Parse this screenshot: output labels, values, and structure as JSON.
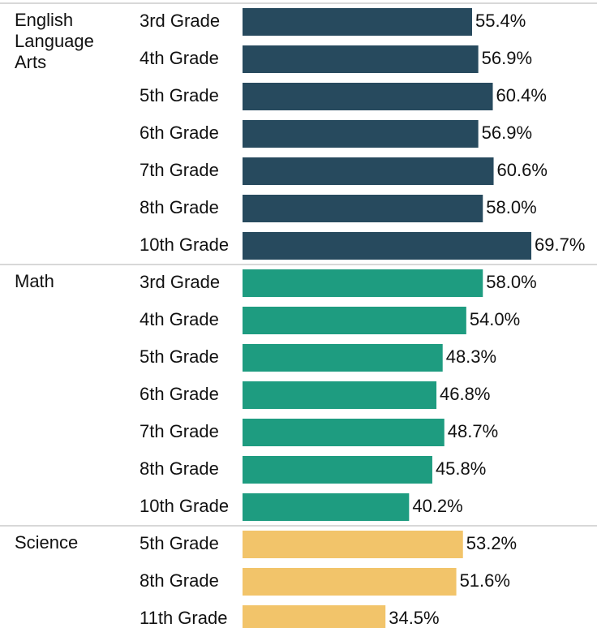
{
  "chart_data": {
    "type": "bar",
    "groups": [
      {
        "name": "English Language Arts",
        "color": "#274a5e",
        "categories": [
          "3rd Grade",
          "4th Grade",
          "5th Grade",
          "6th Grade",
          "7th Grade",
          "8th Grade",
          "10th Grade"
        ],
        "values": [
          55.4,
          56.9,
          60.4,
          56.9,
          60.6,
          58.0,
          69.7
        ],
        "value_labels": [
          "55.4%",
          "56.9%",
          "60.4%",
          "56.9%",
          "60.6%",
          "58.0%",
          "69.7%"
        ]
      },
      {
        "name": "Math",
        "color": "#1e9c80",
        "categories": [
          "3rd Grade",
          "4th Grade",
          "5th Grade",
          "6th Grade",
          "7th Grade",
          "8th Grade",
          "10th Grade"
        ],
        "values": [
          58.0,
          54.0,
          48.3,
          46.8,
          48.7,
          45.8,
          40.2
        ],
        "value_labels": [
          "58.0%",
          "54.0%",
          "48.3%",
          "46.8%",
          "48.7%",
          "45.8%",
          "40.2%"
        ]
      },
      {
        "name": "Science",
        "color": "#f2c46a",
        "categories": [
          "5th Grade",
          "8th Grade",
          "11th Grade"
        ],
        "values": [
          53.2,
          51.6,
          34.5
        ],
        "value_labels": [
          "53.2%",
          "51.6%",
          "34.5%"
        ]
      }
    ]
  }
}
